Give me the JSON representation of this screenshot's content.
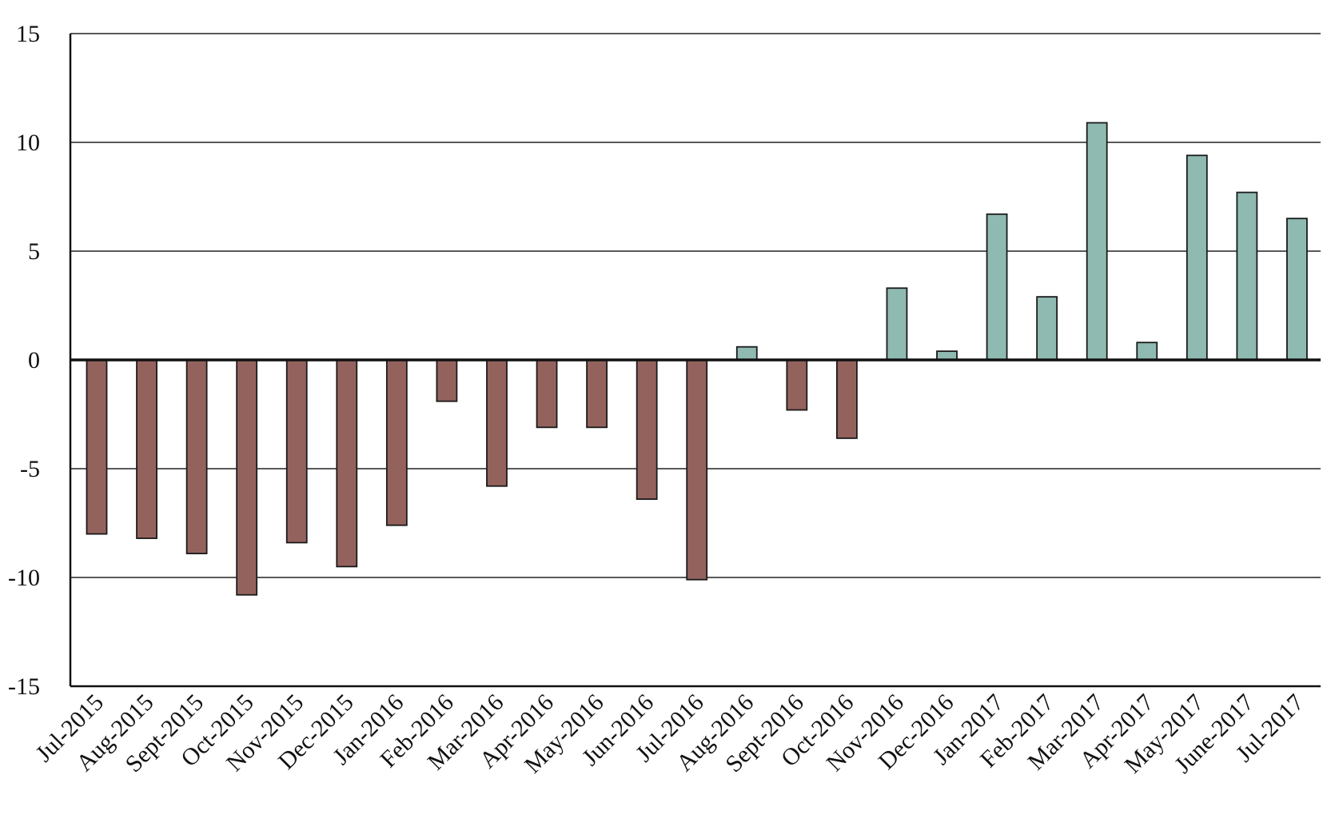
{
  "chart_data": {
    "type": "bar",
    "title": "",
    "xlabel": "",
    "ylabel": "",
    "ylim": [
      -15,
      15
    ],
    "yticks": [
      15,
      10,
      5,
      0,
      -5,
      -10,
      -15
    ],
    "grid": true,
    "legend": "none",
    "positive_color": "#8fbab1",
    "negative_color": "#94625d",
    "categories": [
      "Jul-2015",
      "Aug-2015",
      "Sept-2015",
      "Oct-2015",
      "Nov-2015",
      "Dec-2015",
      "Jan-2016",
      "Feb-2016",
      "Mar-2016",
      "Apr-2016",
      "May-2016",
      "Jun-2016",
      "Jul-2016",
      "Aug-2016",
      "Sept-2016",
      "Oct-2016",
      "Nov-2016",
      "Dec-2016",
      "Jan-2017",
      "Feb-2017",
      "Mar-2017",
      "Apr-2017",
      "May-2017",
      "June-2017",
      "Jul-2017"
    ],
    "values": [
      -8.0,
      -8.2,
      -8.9,
      -10.8,
      -8.4,
      -9.5,
      -7.6,
      -1.9,
      -5.8,
      -3.1,
      -3.1,
      -6.4,
      -10.1,
      0.6,
      -2.3,
      -3.6,
      3.3,
      0.4,
      6.7,
      2.9,
      10.9,
      0.8,
      9.4,
      7.7,
      6.5
    ]
  }
}
